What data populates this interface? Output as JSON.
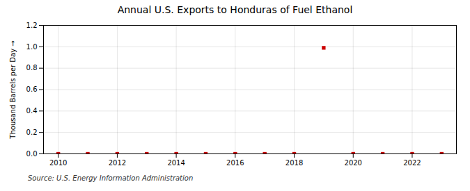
{
  "chart_data": {
    "type": "scatter",
    "title": "Annual U.S. Exports to Honduras of Fuel Ethanol",
    "ylabel": "Thousand Barrels per Day",
    "source": "Source: U.S. Energy Information Administration",
    "x": [
      2010,
      2011,
      2012,
      2013,
      2014,
      2015,
      2016,
      2017,
      2018,
      2019,
      2020,
      2021,
      2022,
      2023
    ],
    "values": [
      0.0,
      0.0,
      0.0,
      0.0,
      0.0,
      0.0,
      0.0,
      0.0,
      0.0,
      0.99,
      0.0,
      0.0,
      0.0,
      0.0
    ],
    "color": "#cc0000",
    "marker": "square",
    "xlim": [
      2009.5,
      2023.5
    ],
    "ylim": [
      0.0,
      1.2
    ],
    "xticks": [
      2010,
      2012,
      2014,
      2016,
      2018,
      2020,
      2022
    ],
    "yticks": [
      {
        "value": 0.0,
        "label": "0.0"
      },
      {
        "value": 0.2,
        "label": "0.2"
      },
      {
        "value": 0.4,
        "label": "0.4"
      },
      {
        "value": 0.6,
        "label": "0.6"
      },
      {
        "value": 0.8,
        "label": "0.8"
      },
      {
        "value": 1.0,
        "label": "1.0"
      },
      {
        "value": 1.2,
        "label": "1.2"
      }
    ],
    "grid": true
  }
}
